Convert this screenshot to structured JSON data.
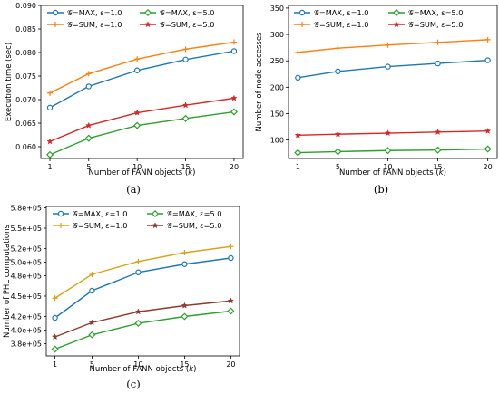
{
  "chart_data": [
    {
      "type": "line",
      "caption": "(a)",
      "xlabel": "Number of FANN objects (",
      "xlabel_var": "k",
      "xlabel_end": ")",
      "ylabel": "Execution time (sec)",
      "x": [
        1,
        5,
        10,
        15,
        20
      ],
      "xticks": [
        "1",
        "5",
        "10",
        "15",
        "20"
      ],
      "ylim": [
        0.0575,
        0.09
      ],
      "yticks": [
        0.06,
        0.065,
        0.07,
        0.075,
        0.08,
        0.085,
        0.09
      ],
      "ytick_labels": [
        "0.060",
        "0.065",
        "0.070",
        "0.075",
        "0.080",
        "0.085",
        "0.090"
      ],
      "legend_position": "top",
      "series": [
        {
          "name": "𝒢=MAX, ε=1.0",
          "color": "#1f77b4",
          "marker": "circle",
          "values": [
            0.0683,
            0.0728,
            0.0762,
            0.0785,
            0.0803
          ]
        },
        {
          "name": "𝒢=SUM, ε=1.0",
          "color": "#ff7f0e",
          "marker": "plus",
          "values": [
            0.0714,
            0.0755,
            0.0786,
            0.0807,
            0.0822
          ]
        },
        {
          "name": "𝒢=MAX, ε=5.0",
          "color": "#2ca02c",
          "marker": "diamond",
          "values": [
            0.0583,
            0.0618,
            0.0645,
            0.066,
            0.0674
          ]
        },
        {
          "name": "𝒢=SUM, ε=5.0",
          "color": "#d62728",
          "marker": "star",
          "values": [
            0.0611,
            0.0645,
            0.0672,
            0.0688,
            0.0703
          ]
        }
      ]
    },
    {
      "type": "line",
      "caption": "(b)",
      "xlabel": "Number of FANN objects (",
      "xlabel_var": "k",
      "xlabel_end": ")",
      "ylabel": "Number of node accesses",
      "x": [
        1,
        5,
        10,
        15,
        20
      ],
      "xticks": [
        "1",
        "5",
        "10",
        "15",
        "20"
      ],
      "ylim": [
        65,
        355
      ],
      "yticks": [
        100,
        150,
        200,
        250,
        300,
        350
      ],
      "ytick_labels": [
        "100",
        "150",
        "200",
        "250",
        "300",
        "350"
      ],
      "legend_position": "top",
      "series": [
        {
          "name": "𝒢=MAX, ε=1.0",
          "color": "#1f77b4",
          "marker": "circle",
          "values": [
            218,
            230,
            239,
            245,
            251
          ]
        },
        {
          "name": "𝒢=SUM, ε=1.0",
          "color": "#ff7f0e",
          "marker": "plus",
          "values": [
            266,
            274,
            280,
            285,
            290
          ]
        },
        {
          "name": "𝒢=MAX, ε=5.0",
          "color": "#2ca02c",
          "marker": "diamond",
          "values": [
            76,
            78,
            80,
            81,
            83
          ]
        },
        {
          "name": "𝒢=SUM, ε=5.0",
          "color": "#d62728",
          "marker": "star",
          "values": [
            109,
            111,
            113,
            115,
            117
          ]
        }
      ]
    },
    {
      "type": "line",
      "caption": "(c)",
      "xlabel": "Number of FANN objects (",
      "xlabel_var": "k",
      "xlabel_end": ")",
      "ylabel": "Number of PHL computations",
      "x": [
        1,
        5,
        10,
        15,
        20
      ],
      "xticks": [
        "1",
        "5",
        "10",
        "15",
        "20"
      ],
      "ylim": [
        362000,
        582000
      ],
      "yticks": [
        380000,
        400000,
        420000,
        450000,
        480000,
        500000,
        520000,
        550000,
        580000
      ],
      "ytick_labels": [
        "3.8e+05",
        "4.0e+05",
        "4.2e+05",
        "4.5e+05",
        "4.8e+05",
        "5.0e+05",
        "5.2e+05",
        "5.5e+05",
        "5.8e+05"
      ],
      "legend_position": "top",
      "series": [
        {
          "name": "𝒢=MAX, ε=1.0",
          "color": "#1f77b4",
          "marker": "circle",
          "values": [
            418000,
            458000,
            485000,
            497000,
            506000
          ]
        },
        {
          "name": "𝒢=SUM, ε=1.0",
          "color": "#d6a31d",
          "marker": "plus",
          "values": [
            447000,
            482000,
            501000,
            514000,
            523000
          ]
        },
        {
          "name": "𝒢=MAX, ε=5.0",
          "color": "#2ca02c",
          "marker": "diamond",
          "values": [
            372000,
            393000,
            410000,
            420000,
            428000
          ]
        },
        {
          "name": "𝒢=SUM, ε=5.0",
          "color": "#8c3b2e",
          "marker": "star",
          "values": [
            390000,
            411000,
            427000,
            436000,
            443000
          ]
        }
      ]
    }
  ]
}
